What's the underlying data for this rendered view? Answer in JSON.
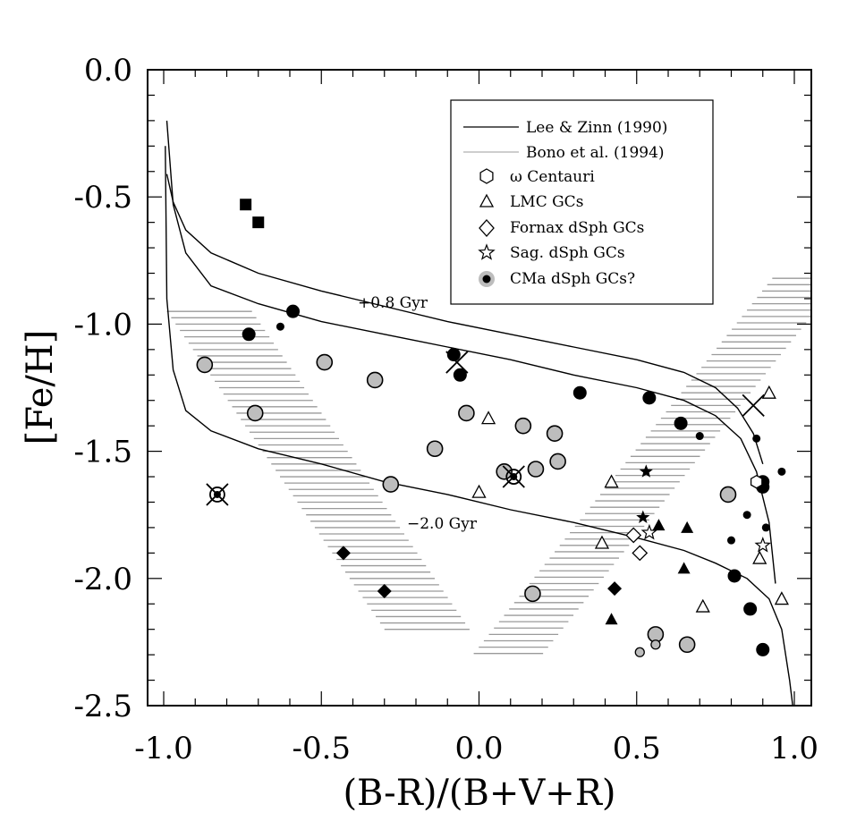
{
  "chart_data": {
    "type": "scatter",
    "xlabel": "(B-R)/(B+V+R)",
    "ylabel": "[Fe/H]",
    "xlim": [
      -1.0,
      1.0
    ],
    "ylim": [
      -2.5,
      0.0
    ],
    "x_ticks": [
      "-1.0",
      "-0.5",
      "0.0",
      "0.5",
      "1.0"
    ],
    "y_ticks": [
      "0.0",
      "-0.5",
      "-1.0",
      "-1.5",
      "-2.0",
      "-2.5"
    ],
    "legend": [
      {
        "label": "Lee & Zinn (1990)",
        "marker": "line-black"
      },
      {
        "label": "Bono et al. (1994)",
        "marker": "line-gray"
      },
      {
        "label": "ω Centauri",
        "marker": "hexagon"
      },
      {
        "label": "LMC GCs",
        "marker": "triangle"
      },
      {
        "label": "Fornax dSph GCs",
        "marker": "diamond"
      },
      {
        "label": "Sag. dSph GCs",
        "marker": "star"
      },
      {
        "label": "CMa dSph GCs?",
        "marker": "cma"
      }
    ],
    "annotations": [
      "+0.8 Gyr",
      "−2.0 Gyr"
    ],
    "curves": [
      {
        "name": "Lee & Zinn (1990) +0.8 Gyr",
        "points": [
          [
            -0.99,
            -0.41
          ],
          [
            -0.97,
            -0.52
          ],
          [
            -0.93,
            -0.63
          ],
          [
            -0.85,
            -0.72
          ],
          [
            -0.7,
            -0.8
          ],
          [
            -0.5,
            -0.87
          ],
          [
            -0.3,
            -0.93
          ],
          [
            -0.1,
            -0.99
          ],
          [
            0.1,
            -1.04
          ],
          [
            0.3,
            -1.09
          ],
          [
            0.5,
            -1.14
          ],
          [
            0.65,
            -1.19
          ],
          [
            0.75,
            -1.25
          ],
          [
            0.82,
            -1.33
          ],
          [
            0.87,
            -1.43
          ],
          [
            0.9,
            -1.55
          ]
        ]
      },
      {
        "name": "Lee & Zinn (1990) mean",
        "points": [
          [
            -0.99,
            -0.2
          ],
          [
            -0.97,
            -0.53
          ],
          [
            -0.93,
            -0.72
          ],
          [
            -0.85,
            -0.85
          ],
          [
            -0.7,
            -0.92
          ],
          [
            -0.5,
            -0.99
          ],
          [
            -0.3,
            -1.04
          ],
          [
            -0.1,
            -1.09
          ],
          [
            0.1,
            -1.14
          ],
          [
            0.3,
            -1.2
          ],
          [
            0.5,
            -1.25
          ],
          [
            0.65,
            -1.3
          ],
          [
            0.75,
            -1.36
          ],
          [
            0.83,
            -1.45
          ],
          [
            0.88,
            -1.58
          ],
          [
            0.92,
            -1.78
          ],
          [
            0.94,
            -2.02
          ]
        ]
      },
      {
        "name": "Lee & Zinn (1990) -2.0 Gyr",
        "points": [
          [
            -0.995,
            -0.3
          ],
          [
            -0.99,
            -0.9
          ],
          [
            -0.97,
            -1.18
          ],
          [
            -0.93,
            -1.34
          ],
          [
            -0.85,
            -1.42
          ],
          [
            -0.7,
            -1.49
          ],
          [
            -0.5,
            -1.55
          ],
          [
            -0.3,
            -1.62
          ],
          [
            -0.1,
            -1.67
          ],
          [
            0.1,
            -1.73
          ],
          [
            0.3,
            -1.78
          ],
          [
            0.5,
            -1.84
          ],
          [
            0.65,
            -1.89
          ],
          [
            0.75,
            -1.94
          ],
          [
            0.85,
            -2.0
          ],
          [
            0.92,
            -2.08
          ],
          [
            0.96,
            -2.2
          ],
          [
            0.985,
            -2.4
          ],
          [
            0.995,
            -2.5
          ]
        ]
      }
    ],
    "bono_bands": [
      {
        "name": "red",
        "top": [
          0.93,
          -0.82
        ],
        "bottom": [
          -0.02,
          -2.3
        ],
        "width": 0.22,
        "y_range": [
          -2.3,
          -0.82
        ]
      },
      {
        "name": "blue",
        "top": [
          -0.99,
          -0.95
        ],
        "bottom": [
          -0.3,
          -2.2
        ],
        "width": 0.27,
        "y_range": [
          -2.2,
          -0.95
        ]
      }
    ],
    "series": [
      {
        "name": "CMa dSph GCs?",
        "marker": "cma-large",
        "points": [
          [
            -0.87,
            -1.16
          ],
          [
            -0.71,
            -1.35
          ],
          [
            -0.49,
            -1.15
          ],
          [
            -0.33,
            -1.22
          ],
          [
            -0.28,
            -1.63
          ],
          [
            -0.14,
            -1.49
          ],
          [
            -0.04,
            -1.35
          ],
          [
            0.08,
            -1.58
          ],
          [
            0.14,
            -1.4
          ],
          [
            0.18,
            -1.57
          ],
          [
            0.24,
            -1.43
          ],
          [
            0.25,
            -1.54
          ],
          [
            0.17,
            -2.06
          ],
          [
            0.56,
            -2.22
          ],
          [
            0.66,
            -2.26
          ],
          [
            0.79,
            -1.67
          ]
        ]
      },
      {
        "name": "CMa dSph GCs? (small)",
        "marker": "cma-small",
        "points": [
          [
            0.51,
            -2.29
          ],
          [
            0.56,
            -2.26
          ]
        ]
      },
      {
        "name": "Filled circles (large)",
        "marker": "filled-circle",
        "points": [
          [
            -0.73,
            -1.04
          ],
          [
            -0.59,
            -0.95
          ],
          [
            -0.08,
            -1.12
          ],
          [
            -0.06,
            -1.2
          ],
          [
            0.32,
            -1.27
          ],
          [
            0.54,
            -1.29
          ],
          [
            0.64,
            -1.39
          ],
          [
            0.9,
            -1.62
          ],
          [
            0.9,
            -1.64
          ],
          [
            0.81,
            -1.99
          ],
          [
            0.86,
            -2.12
          ],
          [
            0.9,
            -2.28
          ]
        ]
      },
      {
        "name": "Filled circles (small)",
        "marker": "filled-small",
        "points": [
          [
            -0.63,
            -1.01
          ],
          [
            0.7,
            -1.44
          ],
          [
            0.88,
            -1.45
          ],
          [
            0.85,
            -1.75
          ],
          [
            0.8,
            -1.85
          ],
          [
            0.91,
            -1.8
          ],
          [
            0.96,
            -1.58
          ]
        ]
      },
      {
        "name": "Crossed circles",
        "marker": "crossed-circle",
        "points": [
          [
            -0.83,
            -1.67
          ],
          [
            0.11,
            -1.6
          ]
        ]
      },
      {
        "name": "Crosses",
        "marker": "cross",
        "points": [
          [
            -0.07,
            -1.15
          ],
          [
            0.87,
            -1.32
          ]
        ]
      },
      {
        "name": "Filled squares",
        "marker": "square",
        "points": [
          [
            -0.74,
            -0.53
          ],
          [
            -0.7,
            -0.6
          ]
        ]
      },
      {
        "name": "Filled diamonds",
        "marker": "filled-diamond",
        "points": [
          [
            -0.43,
            -1.9
          ],
          [
            -0.3,
            -2.05
          ],
          [
            0.43,
            -2.04
          ]
        ]
      },
      {
        "name": "Fornax dSph GCs",
        "marker": "diamond",
        "points": [
          [
            0.49,
            -1.83
          ],
          [
            0.51,
            -1.9
          ]
        ]
      },
      {
        "name": "LMC GCs",
        "marker": "triangle",
        "points": [
          [
            0.03,
            -1.37
          ],
          [
            0.0,
            -1.66
          ],
          [
            0.42,
            -1.62
          ],
          [
            0.39,
            -1.86
          ],
          [
            0.71,
            -2.11
          ],
          [
            0.89,
            -1.92
          ],
          [
            0.92,
            -1.27
          ],
          [
            0.96,
            -2.08
          ]
        ]
      },
      {
        "name": "Filled triangles",
        "marker": "filled-triangle",
        "points": [
          [
            0.57,
            -1.79
          ],
          [
            0.66,
            -1.8
          ],
          [
            0.65,
            -1.96
          ],
          [
            0.42,
            -2.16
          ]
        ]
      },
      {
        "name": "Filled stars",
        "marker": "filled-star",
        "points": [
          [
            0.53,
            -1.58
          ],
          [
            0.52,
            -1.76
          ]
        ]
      },
      {
        "name": "Sag. dSph GCs",
        "marker": "star",
        "points": [
          [
            0.54,
            -1.82
          ],
          [
            0.9,
            -1.87
          ]
        ]
      },
      {
        "name": "ω Centauri",
        "marker": "hexagon",
        "points": [
          [
            0.88,
            -1.62
          ]
        ]
      }
    ]
  }
}
